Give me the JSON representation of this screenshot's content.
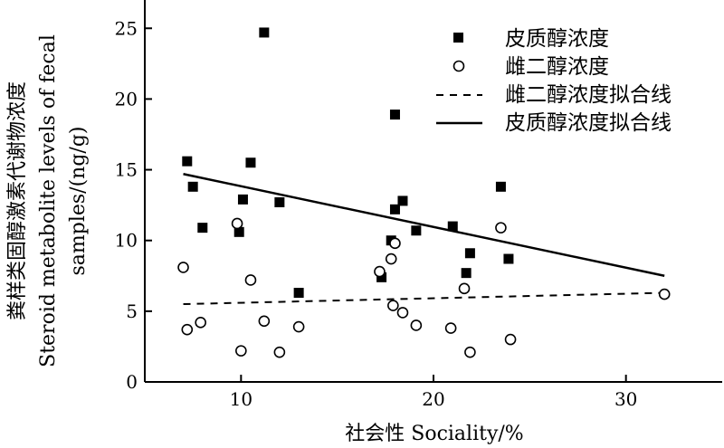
{
  "chart_data": {
    "type": "scatter",
    "xlabel": "社会性 Sociality/%",
    "ylabel_lines": [
      "粪样类固醇激素代谢物浓度",
      "Steroid metabolite levels of fecal",
      "samples/(ng/g)"
    ],
    "xlim": [
      5,
      35
    ],
    "ylim": [
      0,
      27
    ],
    "xticks": [
      10,
      20,
      30
    ],
    "yticks": [
      0,
      5,
      10,
      15,
      20,
      25
    ],
    "grid": false,
    "legend_position": "top-right",
    "series": [
      {
        "name": "皮质醇浓度",
        "marker": "filled-square",
        "color": "#000000",
        "points": [
          [
            7.2,
            15.6
          ],
          [
            7.5,
            13.8
          ],
          [
            8.0,
            10.9
          ],
          [
            9.9,
            10.6
          ],
          [
            10.1,
            12.9
          ],
          [
            10.5,
            15.5
          ],
          [
            11.2,
            24.7
          ],
          [
            12.0,
            12.7
          ],
          [
            13.0,
            6.3
          ],
          [
            17.3,
            7.4
          ],
          [
            17.8,
            10.0
          ],
          [
            18.0,
            12.2
          ],
          [
            18.0,
            18.9
          ],
          [
            18.4,
            12.8
          ],
          [
            19.1,
            10.7
          ],
          [
            21.0,
            11.0
          ],
          [
            21.7,
            7.7
          ],
          [
            21.9,
            9.1
          ],
          [
            23.5,
            13.8
          ],
          [
            23.9,
            8.7
          ]
        ]
      },
      {
        "name": "雌二醇浓度",
        "marker": "open-circle",
        "color": "#000000",
        "points": [
          [
            7.0,
            8.1
          ],
          [
            7.2,
            3.7
          ],
          [
            7.9,
            4.2
          ],
          [
            9.8,
            11.2
          ],
          [
            10.0,
            2.2
          ],
          [
            10.5,
            7.2
          ],
          [
            11.2,
            4.3
          ],
          [
            12.0,
            2.1
          ],
          [
            13.0,
            3.9
          ],
          [
            17.2,
            7.8
          ],
          [
            17.8,
            8.7
          ],
          [
            18.0,
            9.8
          ],
          [
            17.9,
            5.4
          ],
          [
            18.4,
            4.9
          ],
          [
            19.1,
            4.0
          ],
          [
            20.9,
            3.8
          ],
          [
            21.6,
            6.6
          ],
          [
            21.9,
            2.1
          ],
          [
            23.5,
            10.9
          ],
          [
            24.0,
            3.0
          ],
          [
            32.0,
            6.2
          ]
        ]
      },
      {
        "name": "雌二醇浓度拟合线",
        "marker": "dashed-line",
        "color": "#000000",
        "x": [
          7.0,
          32.0
        ],
        "y": [
          5.5,
          6.3
        ]
      },
      {
        "name": "皮质醇浓度拟合线",
        "marker": "solid-line",
        "color": "#000000",
        "x": [
          7.0,
          32.0
        ],
        "y": [
          14.7,
          7.5
        ]
      }
    ]
  }
}
